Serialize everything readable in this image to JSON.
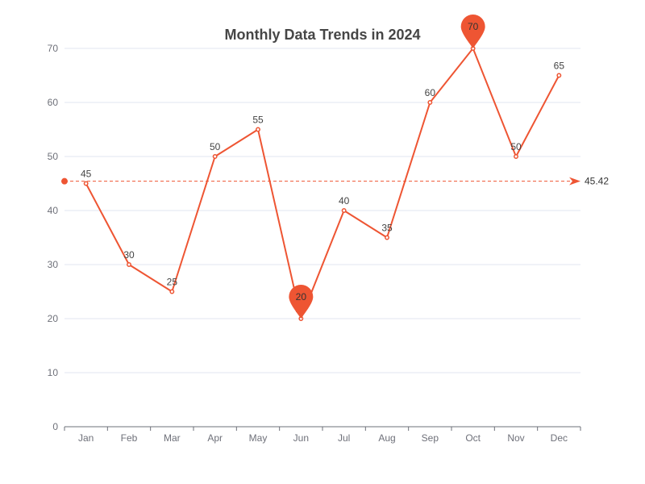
{
  "chart_data": {
    "type": "line",
    "title": "Monthly Data Trends in 2024",
    "xlabel": "",
    "ylabel": "",
    "categories": [
      "Jan",
      "Feb",
      "Mar",
      "Apr",
      "May",
      "Jun",
      "Jul",
      "Aug",
      "Sep",
      "Oct",
      "Nov",
      "Dec"
    ],
    "values": [
      45,
      30,
      25,
      50,
      55,
      20,
      40,
      35,
      60,
      70,
      50,
      65
    ],
    "ylim": [
      0,
      70
    ],
    "yticks": [
      0,
      10,
      20,
      30,
      40,
      50,
      60,
      70
    ],
    "grid": true,
    "color": "#ee5533",
    "mark_points": {
      "max": {
        "category": "Oct",
        "value": 70
      },
      "min": {
        "category": "Jun",
        "value": 20
      }
    },
    "mark_line": {
      "type": "average",
      "value": 45.42
    }
  }
}
